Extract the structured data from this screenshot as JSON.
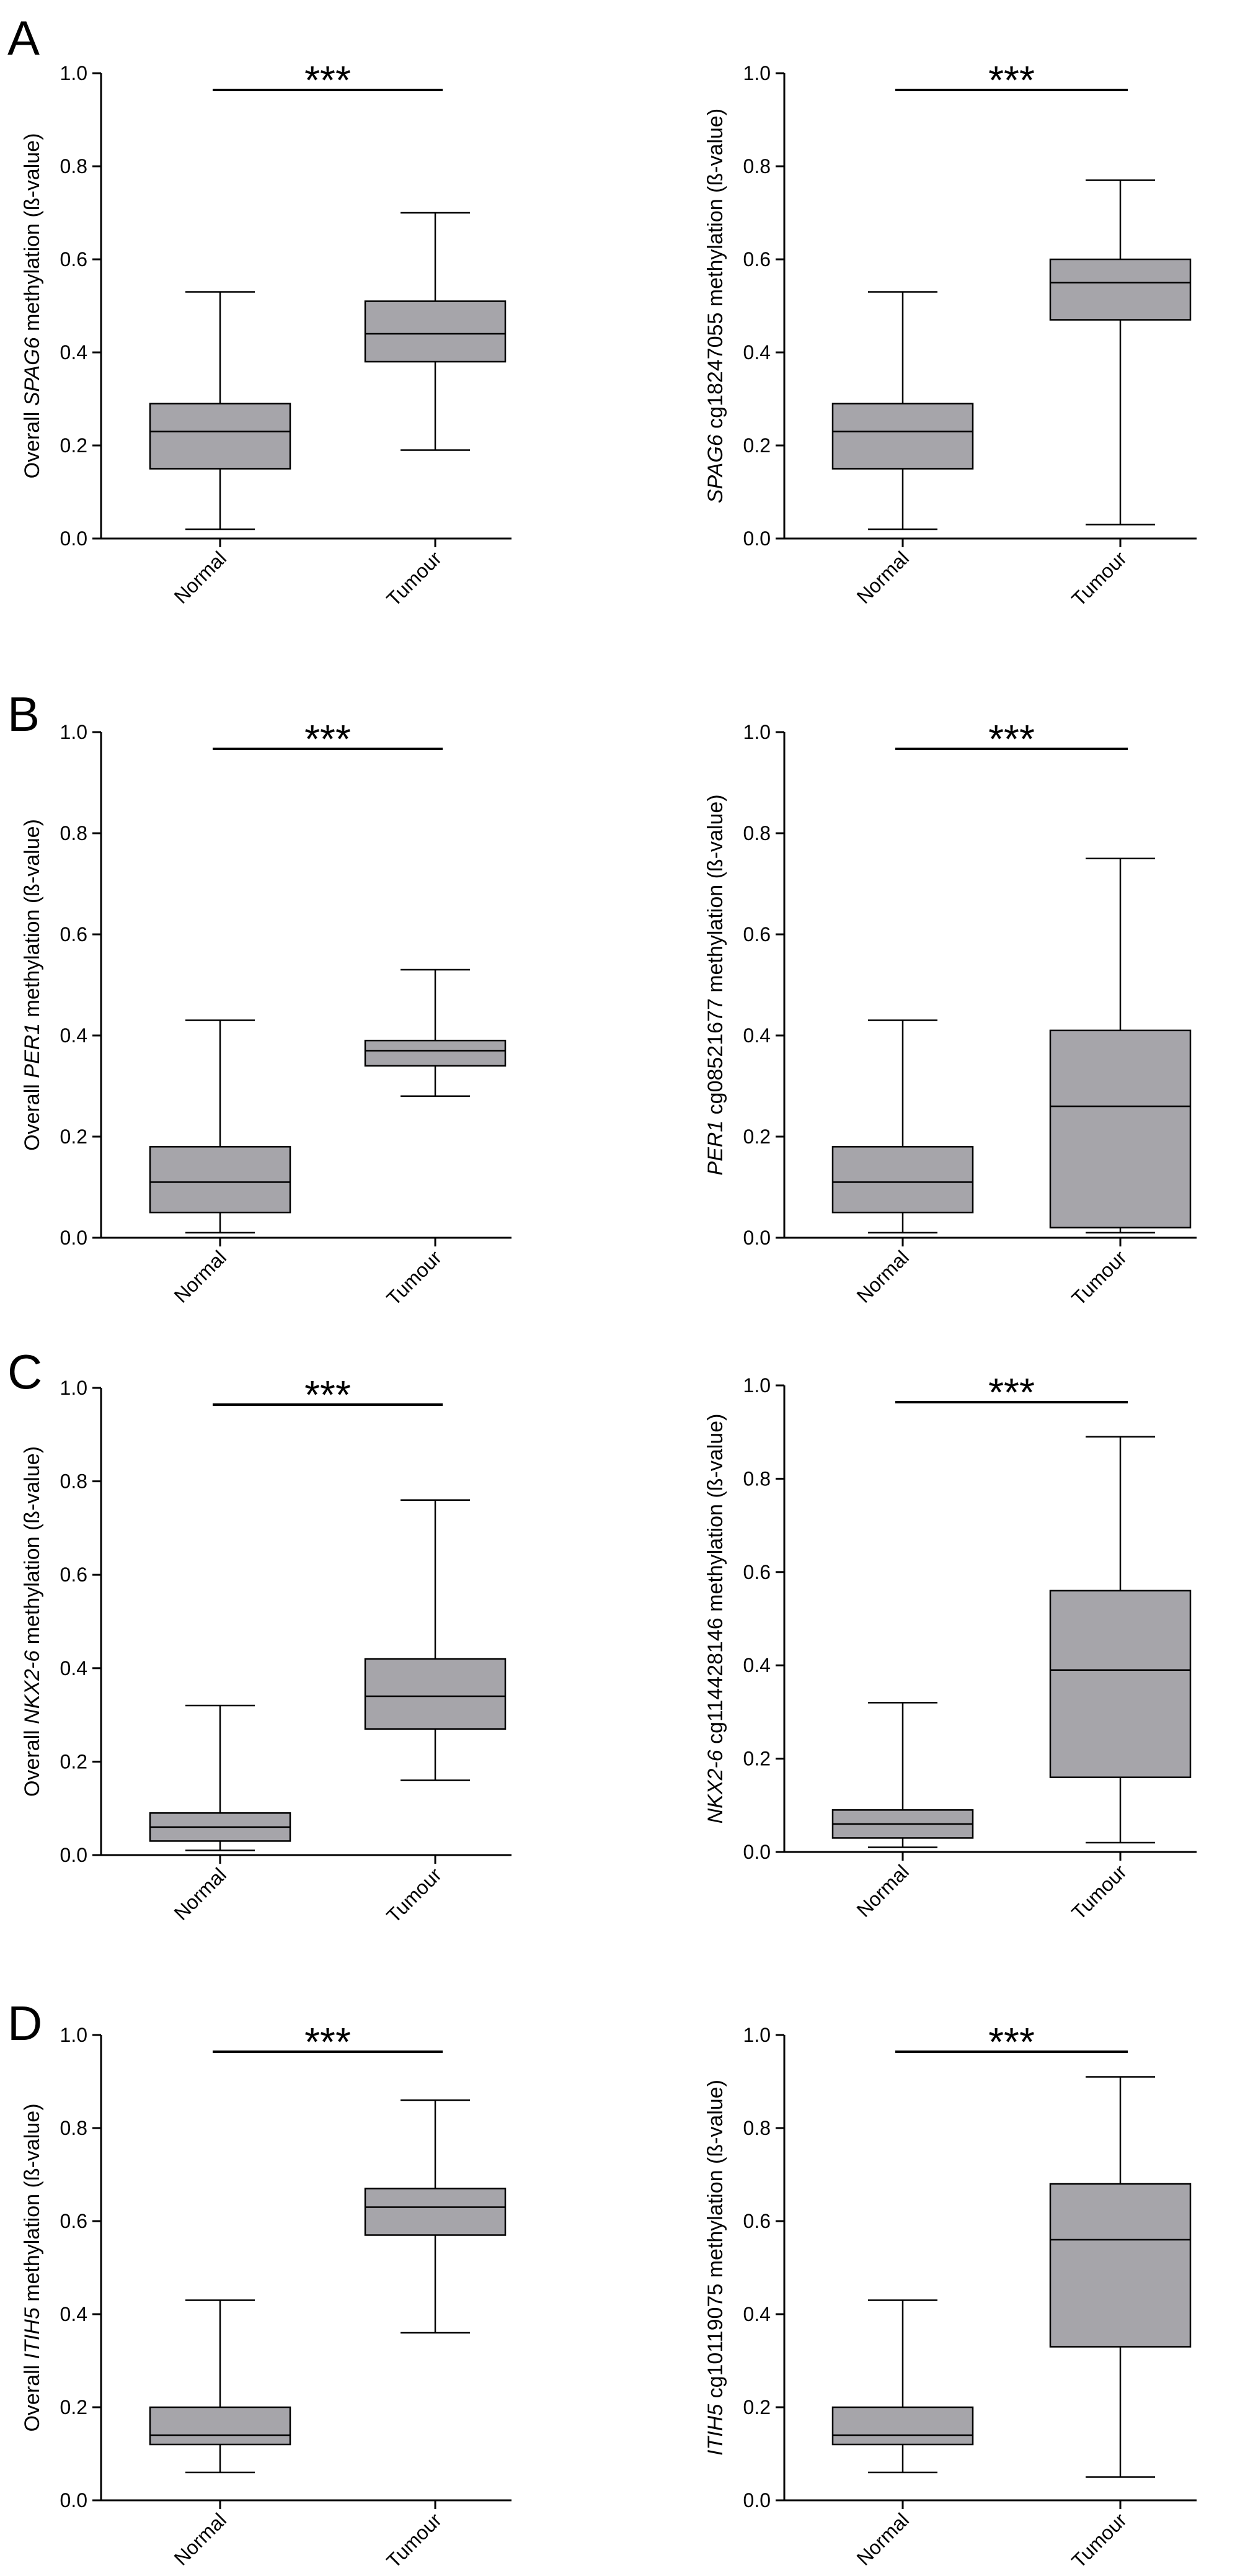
{
  "figure": {
    "panel_letters": [
      "A",
      "B",
      "C",
      "D"
    ],
    "sig_marker": "***",
    "box_fill": "#a6a5aa",
    "stroke_color": "#000000"
  },
  "chart_data": [
    {
      "type": "box",
      "panel": "A",
      "position": "left",
      "ylabel_parts": [
        {
          "t": "Overall "
        },
        {
          "t": "SPAG6",
          "italic": true
        },
        {
          "t": " methylation (ß-value)"
        }
      ],
      "ylim": [
        0,
        1.0
      ],
      "yticks": [
        "0.0",
        "0.2",
        "0.4",
        "0.6",
        "0.8",
        "1.0"
      ],
      "categories": [
        "Normal",
        "Tumour"
      ],
      "boxes": [
        {
          "min": 0.02,
          "q1": 0.15,
          "median": 0.23,
          "q3": 0.29,
          "max": 0.53
        },
        {
          "min": 0.19,
          "q1": 0.38,
          "median": 0.44,
          "q3": 0.51,
          "max": 0.7
        }
      ],
      "significance": "***"
    },
    {
      "type": "box",
      "panel": "A",
      "position": "right",
      "ylabel_parts": [
        {
          "t": "SPAG6",
          "italic": true
        },
        {
          "t": " cg18247055 methylation (ß-value)"
        }
      ],
      "ylim": [
        0,
        1.0
      ],
      "yticks": [
        "0.0",
        "0.2",
        "0.4",
        "0.6",
        "0.8",
        "1.0"
      ],
      "categories": [
        "Normal",
        "Tumour"
      ],
      "boxes": [
        {
          "min": 0.02,
          "q1": 0.15,
          "median": 0.23,
          "q3": 0.29,
          "max": 0.53
        },
        {
          "min": 0.03,
          "q1": 0.47,
          "median": 0.55,
          "q3": 0.6,
          "max": 0.77
        }
      ],
      "significance": "***"
    },
    {
      "type": "box",
      "panel": "B",
      "position": "left",
      "ylabel_parts": [
        {
          "t": "Overall "
        },
        {
          "t": "PER1",
          "italic": true
        },
        {
          "t": " methylation (ß-value)"
        }
      ],
      "ylim": [
        0,
        1.0
      ],
      "yticks": [
        "0.0",
        "0.2",
        "0.4",
        "0.6",
        "0.8",
        "1.0"
      ],
      "categories": [
        "Normal",
        "Tumour"
      ],
      "boxes": [
        {
          "min": 0.01,
          "q1": 0.05,
          "median": 0.11,
          "q3": 0.18,
          "max": 0.43
        },
        {
          "min": 0.28,
          "q1": 0.34,
          "median": 0.37,
          "q3": 0.39,
          "max": 0.53
        }
      ],
      "significance": "***"
    },
    {
      "type": "box",
      "panel": "B",
      "position": "right",
      "ylabel_parts": [
        {
          "t": "PER1",
          "italic": true
        },
        {
          "t": " cg08521677 methylation (ß-value)"
        }
      ],
      "ylim": [
        0,
        1.0
      ],
      "yticks": [
        "0.0",
        "0.2",
        "0.4",
        "0.6",
        "0.8",
        "1.0"
      ],
      "categories": [
        "Normal",
        "Tumour"
      ],
      "boxes": [
        {
          "min": 0.01,
          "q1": 0.05,
          "median": 0.11,
          "q3": 0.18,
          "max": 0.43
        },
        {
          "min": 0.01,
          "q1": 0.02,
          "median": 0.26,
          "q3": 0.41,
          "max": 0.75
        }
      ],
      "significance": "***"
    },
    {
      "type": "box",
      "panel": "C",
      "position": "left",
      "ylabel_parts": [
        {
          "t": "Overall "
        },
        {
          "t": "NKX2-6",
          "italic": true
        },
        {
          "t": " methylation (ß-value)"
        }
      ],
      "ylim": [
        0,
        1.0
      ],
      "yticks": [
        "0.0",
        "0.2",
        "0.4",
        "0.6",
        "0.8",
        "1.0"
      ],
      "categories": [
        "Normal",
        "Tumour"
      ],
      "boxes": [
        {
          "min": 0.01,
          "q1": 0.03,
          "median": 0.06,
          "q3": 0.09,
          "max": 0.32
        },
        {
          "min": 0.16,
          "q1": 0.27,
          "median": 0.34,
          "q3": 0.42,
          "max": 0.76
        }
      ],
      "significance": "***"
    },
    {
      "type": "box",
      "panel": "C",
      "position": "right",
      "ylabel_parts": [
        {
          "t": "NKX2-6",
          "italic": true
        },
        {
          "t": " cg114428146 methylation (ß-value)"
        }
      ],
      "ylim": [
        0,
        1.0
      ],
      "yticks": [
        "0.0",
        "0.2",
        "0.4",
        "0.6",
        "0.8",
        "1.0"
      ],
      "categories": [
        "Normal",
        "Tumour"
      ],
      "boxes": [
        {
          "min": 0.01,
          "q1": 0.03,
          "median": 0.06,
          "q3": 0.09,
          "max": 0.32
        },
        {
          "min": 0.02,
          "q1": 0.16,
          "median": 0.39,
          "q3": 0.56,
          "max": 0.89
        }
      ],
      "significance": "***"
    },
    {
      "type": "box",
      "panel": "D",
      "position": "left",
      "ylabel_parts": [
        {
          "t": "Overall "
        },
        {
          "t": "ITIH5",
          "italic": true
        },
        {
          "t": " methylation (ß-value)"
        }
      ],
      "ylim": [
        0,
        1.0
      ],
      "yticks": [
        "0.0",
        "0.2",
        "0.4",
        "0.6",
        "0.8",
        "1.0"
      ],
      "categories": [
        "Normal",
        "Tumour"
      ],
      "boxes": [
        {
          "min": 0.06,
          "q1": 0.12,
          "median": 0.14,
          "q3": 0.2,
          "max": 0.43
        },
        {
          "min": 0.36,
          "q1": 0.57,
          "median": 0.63,
          "q3": 0.67,
          "max": 0.86
        }
      ],
      "significance": "***"
    },
    {
      "type": "box",
      "panel": "D",
      "position": "right",
      "ylabel_parts": [
        {
          "t": "ITIH5",
          "italic": true
        },
        {
          "t": " cg10119075 methylation (ß-value)"
        }
      ],
      "ylim": [
        0,
        1.0
      ],
      "yticks": [
        "0.0",
        "0.2",
        "0.4",
        "0.6",
        "0.8",
        "1.0"
      ],
      "categories": [
        "Normal",
        "Tumour"
      ],
      "boxes": [
        {
          "min": 0.06,
          "q1": 0.12,
          "median": 0.14,
          "q3": 0.2,
          "max": 0.43
        },
        {
          "min": 0.05,
          "q1": 0.33,
          "median": 0.56,
          "q3": 0.68,
          "max": 0.91
        }
      ],
      "significance": "***"
    }
  ]
}
